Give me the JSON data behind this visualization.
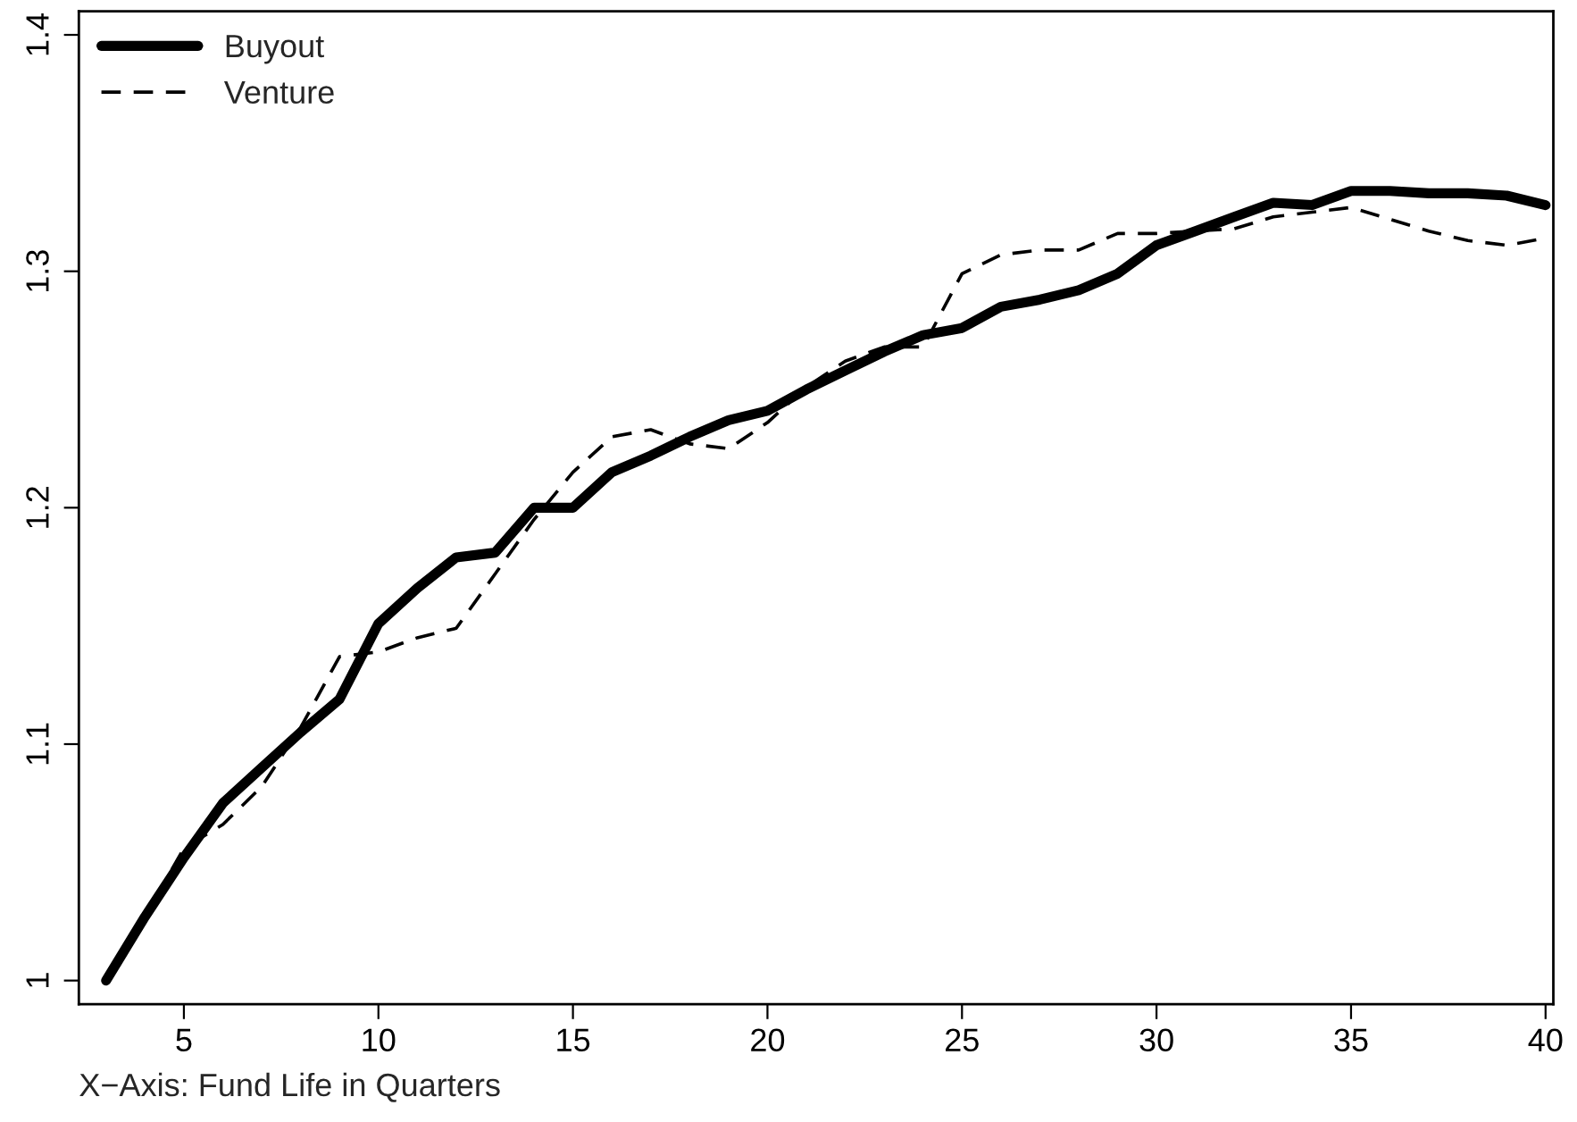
{
  "chart_data": {
    "type": "line",
    "xlabel": "X−Axis: Fund Life in Quarters",
    "x": [
      3,
      4,
      5,
      6,
      7,
      8,
      9,
      10,
      11,
      12,
      13,
      14,
      15,
      16,
      17,
      18,
      19,
      20,
      21,
      22,
      23,
      24,
      25,
      26,
      27,
      28,
      29,
      30,
      31,
      32,
      33,
      34,
      35,
      36,
      37,
      38,
      39,
      40
    ],
    "series": [
      {
        "name": "Buyout",
        "color": "#000000",
        "line_style": "solid",
        "values": [
          1.0,
          1.027,
          1.052,
          1.075,
          1.09,
          1.105,
          1.119,
          1.151,
          1.166,
          1.179,
          1.181,
          1.2,
          1.2,
          1.215,
          1.222,
          1.23,
          1.237,
          1.241,
          1.25,
          1.258,
          1.266,
          1.273,
          1.276,
          1.285,
          1.288,
          1.292,
          1.299,
          1.311,
          1.317,
          1.323,
          1.329,
          1.328,
          1.334,
          1.334,
          1.333,
          1.333,
          1.332,
          1.328
        ]
      },
      {
        "name": "Venture",
        "color": "#000000",
        "line_style": "dashed",
        "values": [
          1.0,
          1.027,
          1.056,
          1.066,
          1.082,
          1.107,
          1.137,
          1.139,
          1.145,
          1.149,
          1.172,
          1.195,
          1.215,
          1.23,
          1.233,
          1.227,
          1.225,
          1.236,
          1.251,
          1.262,
          1.268,
          1.268,
          1.299,
          1.307,
          1.309,
          1.309,
          1.316,
          1.316,
          1.317,
          1.318,
          1.323,
          1.325,
          1.327,
          1.322,
          1.317,
          1.313,
          1.311,
          1.314
        ]
      }
    ],
    "xlim": [
      2.3,
      40.2
    ],
    "ylim": [
      0.99,
      1.41
    ],
    "xticks": [
      5,
      10,
      15,
      20,
      25,
      30,
      35,
      40
    ],
    "yticks": [
      1,
      1.1,
      1.2,
      1.3,
      1.4
    ],
    "grid": false,
    "legend": "top left",
    "marker": "none"
  }
}
